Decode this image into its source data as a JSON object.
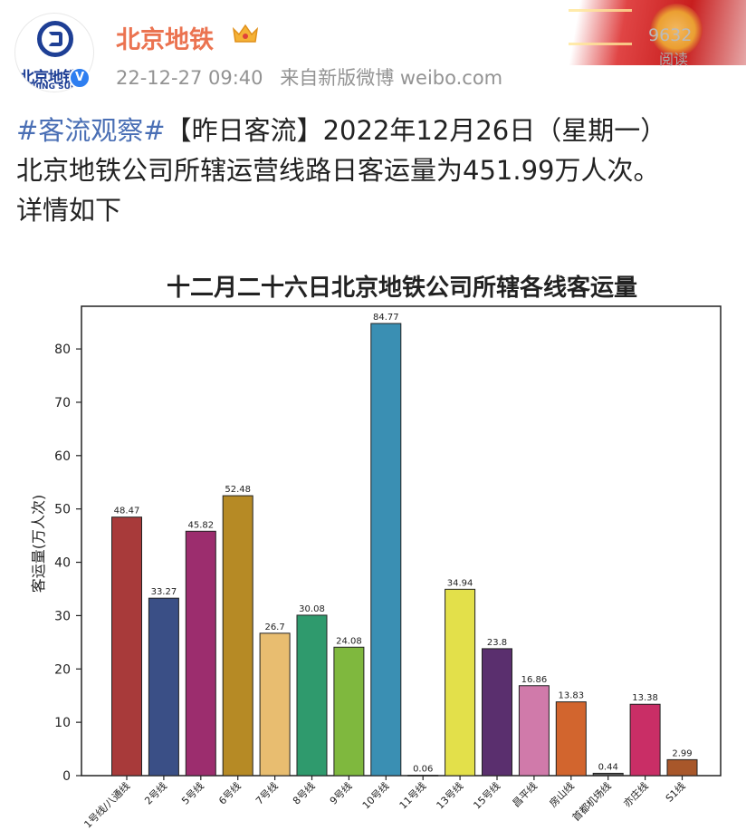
{
  "header": {
    "username": "北京地铁",
    "post_time": "22-12-27 09:40",
    "source": "来自新版微博 weibo.com",
    "read_count": "9632",
    "read_label": "阅读",
    "avatar_logo_text": "北京地铁",
    "avatar_logo_sub": "BEIJING SUBWAY",
    "verified_badge": "V"
  },
  "post": {
    "hashtag": "#客流观察#",
    "line1_rest": "【昨日客流】2022年12月26日（星期一）",
    "line2": "北京地铁公司所辖运营线路日客运量为451.99万人次。",
    "line3": "详情如下"
  },
  "colors": {
    "username": "#eb7350",
    "hashtag": "#4a6fb5",
    "meta": "#939393"
  },
  "chart_data": {
    "type": "bar",
    "title": "十二月二十六日北京地铁公司所辖各线客运量",
    "ylabel": "客运量(万人次)",
    "xlabel": "",
    "ylim": [
      0,
      88
    ],
    "yticks": [
      0,
      10,
      20,
      30,
      40,
      50,
      60,
      70,
      80
    ],
    "grid": false,
    "categories": [
      "1号线/八通线",
      "2号线",
      "5号线",
      "6号线",
      "7号线",
      "8号线",
      "9号线",
      "10号线",
      "11号线",
      "13号线",
      "15号线",
      "昌平线",
      "房山线",
      "首都机场线",
      "亦庄线",
      "S1线"
    ],
    "values": [
      48.47,
      33.27,
      45.82,
      52.48,
      26.7,
      30.08,
      24.08,
      84.77,
      0.06,
      34.94,
      23.8,
      16.86,
      13.83,
      0.44,
      13.38,
      2.99
    ],
    "value_labels": [
      "48.47",
      "33.27",
      "45.82",
      "52.48",
      "26.7",
      "30.08",
      "24.08",
      "84.77",
      "0.06",
      "34.94",
      "23.8",
      "16.86",
      "13.83",
      "0.44",
      "13.38",
      "2.99"
    ],
    "colors": [
      "#a83a3a",
      "#3a4f86",
      "#9c2d6e",
      "#b68a25",
      "#e8bd70",
      "#2f9a6d",
      "#7fb83e",
      "#3a8fb3",
      "#777777",
      "#e3e04a",
      "#5a2f6e",
      "#d07aaa",
      "#d2652e",
      "#555555",
      "#c92e66",
      "#a8572a"
    ]
  }
}
